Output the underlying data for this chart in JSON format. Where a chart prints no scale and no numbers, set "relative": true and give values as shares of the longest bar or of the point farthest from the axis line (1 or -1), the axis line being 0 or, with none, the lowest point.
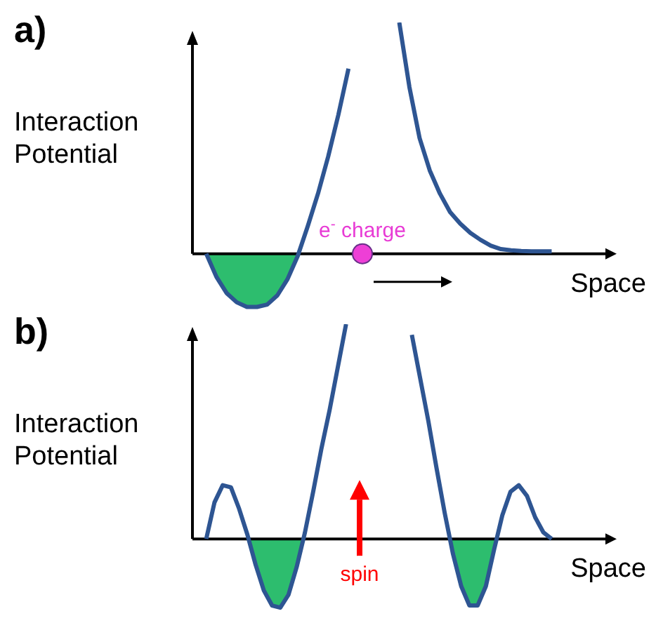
{
  "chart_data": [
    {
      "type": "line",
      "title": "a)",
      "xlabel": "Space",
      "ylabel": "Interaction Potential",
      "relative": true,
      "annotations": [
        "e$^{-}$ charge"
      ],
      "categories": [
        null,
        null,
        null,
        null,
        null,
        null,
        null,
        null,
        null,
        null,
        null,
        null,
        null,
        null,
        null,
        null,
        null,
        null,
        null,
        null,
        null,
        null,
        null,
        null,
        null,
        null,
        null,
        null,
        null,
        null,
        null,
        null,
        null,
        null,
        null
      ],
      "series": [
        {
          "color": "#2e5592",
          "values": [
            0,
            -0.1,
            -0.17,
            -0.21,
            -0.23,
            -0.23,
            -0.22,
            -0.18,
            -0.11,
            -0.01,
            0.12,
            0.26,
            0.42,
            0.6,
            0.8,
            null,
            null,
            null,
            null,
            null,
            null,
            null,
            null,
            null,
            null,
            null,
            null,
            null,
            null,
            null,
            null,
            null,
            null,
            null,
            null
          ]
        },
        {
          "color": "#2e5592",
          "values": [
            null,
            null,
            null,
            null,
            null,
            null,
            null,
            null,
            null,
            null,
            null,
            null,
            null,
            null,
            null,
            null,
            null,
            null,
            null,
            1,
            0.72,
            0.5,
            0.36,
            0.26,
            0.18,
            0.13,
            0.09,
            0.06,
            0.035,
            0.02,
            0.015,
            0.012,
            0.01,
            0.01,
            0.01
          ]
        }
      ]
    },
    {
      "type": "line",
      "title": "b)",
      "xlabel": "Space",
      "ylabel": "Interaction Potential",
      "relative": true,
      "annotations": [
        "spin"
      ],
      "categories": [
        null,
        null,
        null,
        null,
        null,
        null,
        null,
        null,
        null,
        null,
        null,
        null,
        null,
        null,
        null,
        null,
        null,
        null,
        null,
        null,
        null,
        null,
        null,
        null,
        null,
        null,
        null,
        null,
        null,
        null,
        null,
        null,
        null,
        null,
        null,
        null,
        null,
        null,
        null,
        null,
        null,
        null,
        null
      ],
      "series": [
        {
          "color": "#2e5592",
          "values": [
            0,
            0.17,
            0.25,
            0.24,
            0.14,
            0.02,
            -0.12,
            -0.24,
            -0.31,
            -0.32,
            -0.26,
            -0.13,
            0.03,
            0.22,
            0.42,
            0.6,
            0.8,
            1.0,
            null,
            null,
            null,
            null,
            null,
            null,
            null,
            null,
            null,
            null,
            null,
            null,
            null,
            null,
            null,
            null,
            null,
            null,
            null,
            null,
            null,
            null,
            null,
            null,
            null
          ]
        },
        {
          "color": "#2e5592",
          "values": [
            null,
            null,
            null,
            null,
            null,
            null,
            null,
            null,
            null,
            null,
            null,
            null,
            null,
            null,
            null,
            null,
            null,
            null,
            null,
            null,
            null,
            null,
            null,
            null,
            null,
            0.95,
            0.75,
            0.55,
            0.33,
            0.12,
            -0.07,
            -0.22,
            -0.31,
            -0.31,
            -0.22,
            -0.05,
            0.11,
            0.22,
            0.25,
            0.2,
            0.1,
            0.03,
            0
          ]
        }
      ]
    }
  ]
}
